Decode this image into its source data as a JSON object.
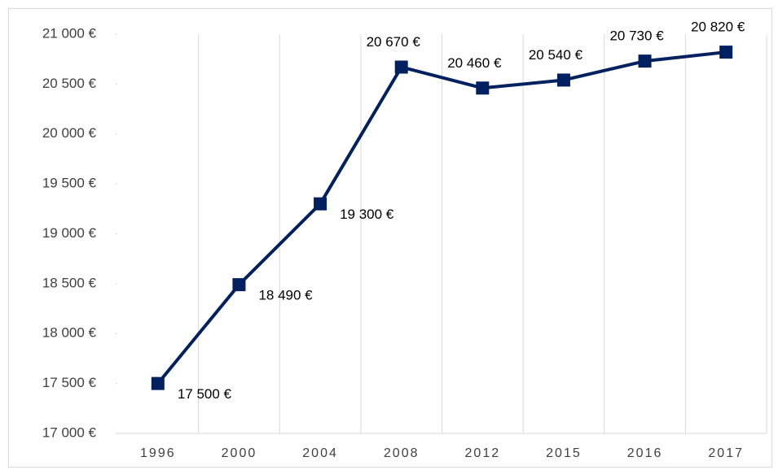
{
  "chart_data": {
    "type": "line",
    "categories": [
      "1996",
      "2000",
      "2004",
      "2008",
      "2012",
      "2015",
      "2016",
      "2017"
    ],
    "series": [
      {
        "color": "#002060",
        "values": [
          17500,
          18490,
          19300,
          20670,
          20460,
          20540,
          20730,
          20820
        ],
        "value_labels": [
          "17 500 €",
          "18 490 €",
          "19 300 €",
          "20 670 €",
          "20 460 €",
          "20 540 €",
          "20 730 €",
          "20 820 €"
        ]
      }
    ],
    "ylim": [
      17000,
      21000
    ],
    "yticks": [
      {
        "value": 17000,
        "label": "17 000 €"
      },
      {
        "value": 17500,
        "label": "17 500 €"
      },
      {
        "value": 18000,
        "label": "18 000 €"
      },
      {
        "value": 18500,
        "label": "18 500 €"
      },
      {
        "value": 19000,
        "label": "19 000 €"
      },
      {
        "value": 19500,
        "label": "19 500 €"
      },
      {
        "value": 20000,
        "label": "20 000 €"
      },
      {
        "value": 20500,
        "label": "20 500 €"
      },
      {
        "value": 21000,
        "label": "21 000 €"
      }
    ]
  }
}
